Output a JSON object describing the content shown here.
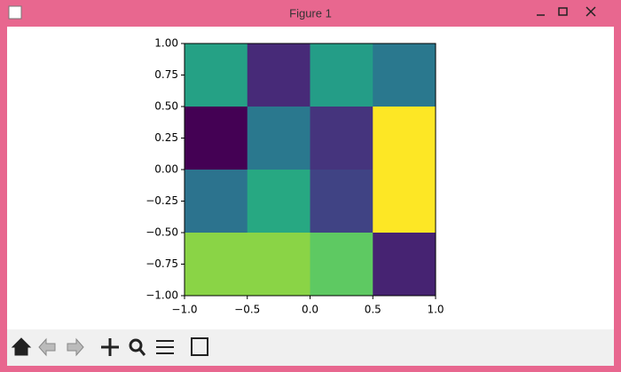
{
  "window": {
    "title": "Figure 1"
  },
  "chart_data": {
    "type": "heatmap",
    "values": [
      [
        0.57,
        0.12,
        0.55,
        0.4
      ],
      [
        0,
        0.4,
        0.15,
        1
      ],
      [
        0.38,
        0.6,
        0.2,
        1
      ],
      [
        0.82,
        0.82,
        0.75,
        0.1
      ]
    ],
    "colormap": "viridis",
    "xlim": [
      -1,
      1
    ],
    "ylim": [
      -1,
      1
    ],
    "xticks": [
      {
        "value": -1,
        "label": "−1.0"
      },
      {
        "value": -0.5,
        "label": "−0.5"
      },
      {
        "value": 0,
        "label": "0.0"
      },
      {
        "value": 0.5,
        "label": "0.5"
      },
      {
        "value": 1,
        "label": "1.0"
      }
    ],
    "yticks": [
      {
        "value": -1,
        "label": "−1.00"
      },
      {
        "value": -0.75,
        "label": "−0.75"
      },
      {
        "value": -0.5,
        "label": "−0.50"
      },
      {
        "value": -0.25,
        "label": "−0.25"
      },
      {
        "value": 0,
        "label": "0.00"
      },
      {
        "value": 0.25,
        "label": "0.25"
      },
      {
        "value": 0.5,
        "label": "0.50"
      },
      {
        "value": 0.75,
        "label": "0.75"
      },
      {
        "value": 1,
        "label": "1.00"
      }
    ]
  }
}
